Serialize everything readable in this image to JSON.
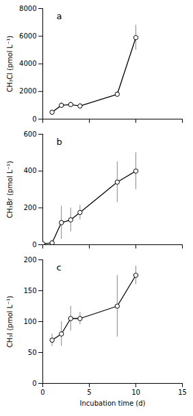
{
  "chart_data": [
    {
      "type": "line",
      "annotations": [
        "a"
      ],
      "x": [
        1,
        2,
        3,
        4,
        8,
        10
      ],
      "values": [
        500,
        1000,
        1050,
        950,
        1800,
        5900
      ],
      "yerr": {
        "values": [
          120,
          200,
          200,
          150,
          200,
          900
        ],
        "color": "#888888"
      },
      "color": "black",
      "marker": "circle",
      "ylabel": "CH₃Cl (pmol L⁻¹)",
      "xlim": [
        0,
        15
      ],
      "xticks": [
        0,
        5,
        10,
        15
      ],
      "ylim": [
        0,
        8000
      ],
      "yticks": [
        0,
        2000,
        4000,
        6000,
        8000
      ],
      "tick_labels": "y"
    },
    {
      "type": "line",
      "annotations": [
        "b"
      ],
      "x": [
        0,
        1,
        2,
        3,
        4,
        8,
        10
      ],
      "values": [
        5,
        10,
        120,
        135,
        175,
        340,
        400
      ],
      "yerr": {
        "values": [
          5,
          5,
          90,
          65,
          40,
          110,
          100
        ],
        "color": "#888888"
      },
      "color": "black",
      "marker": "circle",
      "ylabel": "CH₃Br (pmol L⁻¹)",
      "xlim": [
        0,
        15
      ],
      "xticks": [
        0,
        5,
        10,
        15
      ],
      "ylim": [
        0,
        600
      ],
      "yticks": [
        0,
        200,
        400,
        600
      ],
      "tick_labels": "y"
    },
    {
      "type": "line",
      "annotations": [
        "c"
      ],
      "x": [
        1,
        2,
        3,
        4,
        8,
        10
      ],
      "values": [
        70,
        80,
        105,
        105,
        125,
        175
      ],
      "yerr": {
        "values": [
          10,
          20,
          20,
          10,
          50,
          15
        ],
        "color": "#888888"
      },
      "color": "black",
      "marker": "circle",
      "ylabel": "CH₃I (pmol L⁻¹)",
      "xlabel": "Incubation time (d)",
      "xlim": [
        0,
        15
      ],
      "xticks": [
        0,
        5,
        10,
        15
      ],
      "ylim": [
        0,
        200
      ],
      "yticks": [
        0,
        50,
        100,
        150,
        200
      ]
    }
  ]
}
